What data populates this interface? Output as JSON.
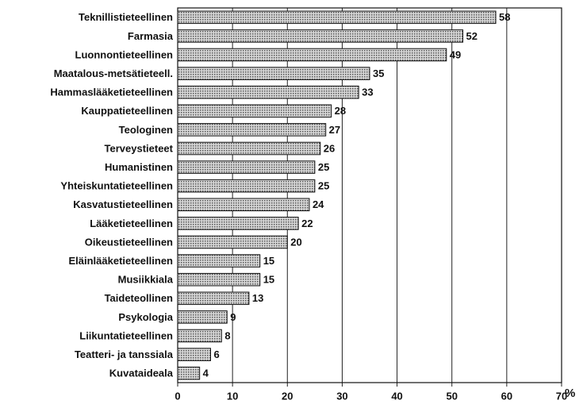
{
  "chart_data": {
    "type": "bar",
    "orientation": "horizontal",
    "categories": [
      "Teknillistieteellinen",
      "Farmasia",
      "Luonnontieteellinen",
      "Maatalous-metsätieteell.",
      "Hammaslääketieteellinen",
      "Kauppatieteellinen",
      "Teologinen",
      "Terveystieteet",
      "Humanistinen",
      "Yhteiskuntatieteellinen",
      "Kasvatustieteellinen",
      "Lääketieteellinen",
      "Oikeustieteellinen",
      "Eläinlääketieteellinen",
      "Musiikkiala",
      "Taideteollinen",
      "Psykologia",
      "Liikuntatieteellinen",
      "Teatteri- ja tanssiala",
      "Kuvataideala"
    ],
    "values": [
      58,
      52,
      49,
      35,
      33,
      28,
      27,
      26,
      25,
      25,
      24,
      22,
      20,
      15,
      15,
      13,
      9,
      8,
      6,
      4
    ],
    "color": "#b4b4b4",
    "xlabel": "%",
    "xlim": [
      0,
      70
    ],
    "xticks": [
      0,
      10,
      20,
      30,
      40,
      50,
      60,
      70
    ],
    "grid": true
  }
}
